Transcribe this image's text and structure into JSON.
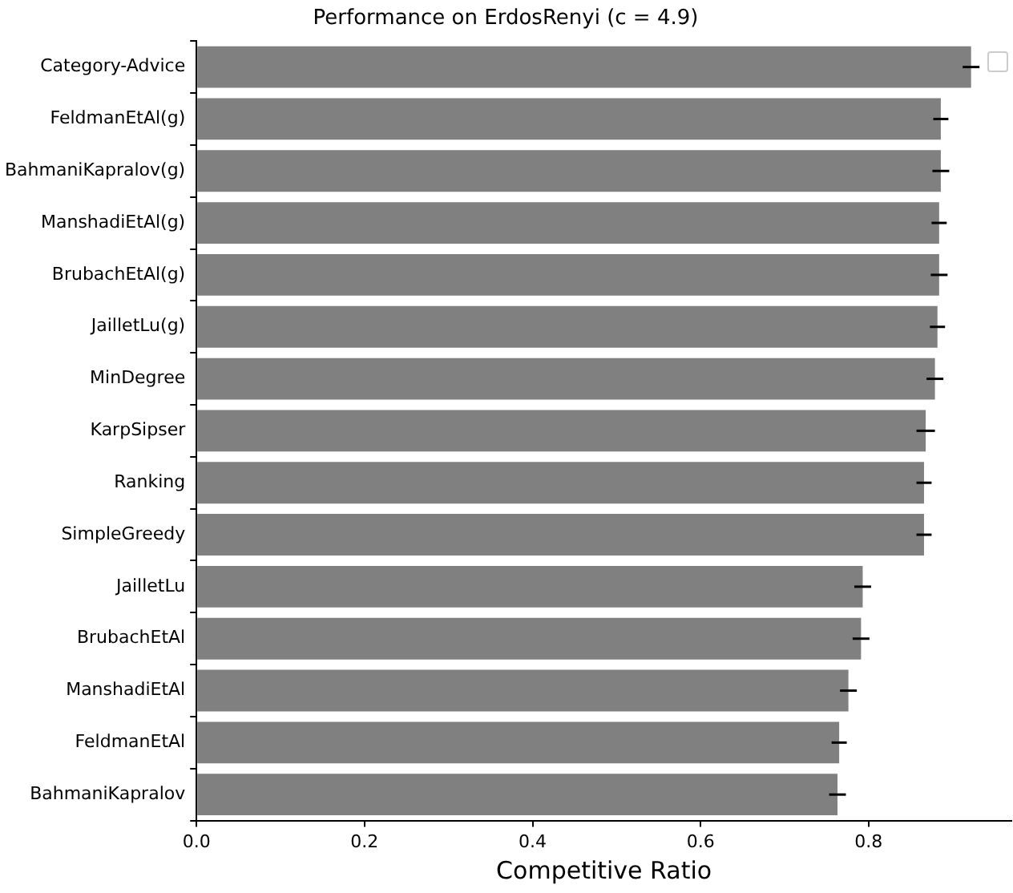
{
  "chart_data": {
    "type": "bar",
    "orientation": "horizontal",
    "title": "Performance on ErdosRenyi (c = 4.9)",
    "xlabel": "Competitive Ratio",
    "categories": [
      "Category-Advice",
      "FeldmanEtAl(g)",
      "BahmaniKapralov(g)",
      "ManshadiEtAl(g)",
      "BrubachEtAl(g)",
      "JailletLu(g)",
      "MinDegree",
      "KarpSipser",
      "Ranking",
      "SimpleGreedy",
      "JailletLu",
      "BrubachEtAl",
      "ManshadiEtAl",
      "FeldmanEtAl",
      "BahmaniKapralov"
    ],
    "values": [
      0.922,
      0.886,
      0.886,
      0.884,
      0.884,
      0.882,
      0.879,
      0.868,
      0.866,
      0.866,
      0.793,
      0.791,
      0.776,
      0.765,
      0.763
    ],
    "errors": [
      0.01,
      0.009,
      0.01,
      0.009,
      0.01,
      0.009,
      0.01,
      0.011,
      0.009,
      0.009,
      0.01,
      0.01,
      0.01,
      0.009,
      0.01
    ],
    "color": "#808080",
    "xlim": [
      0,
      0.97
    ],
    "xticks": [
      {
        "value": 0,
        "label": "0.0"
      },
      0.2,
      0.4,
      0.6,
      0.8
    ],
    "grid": false
  }
}
